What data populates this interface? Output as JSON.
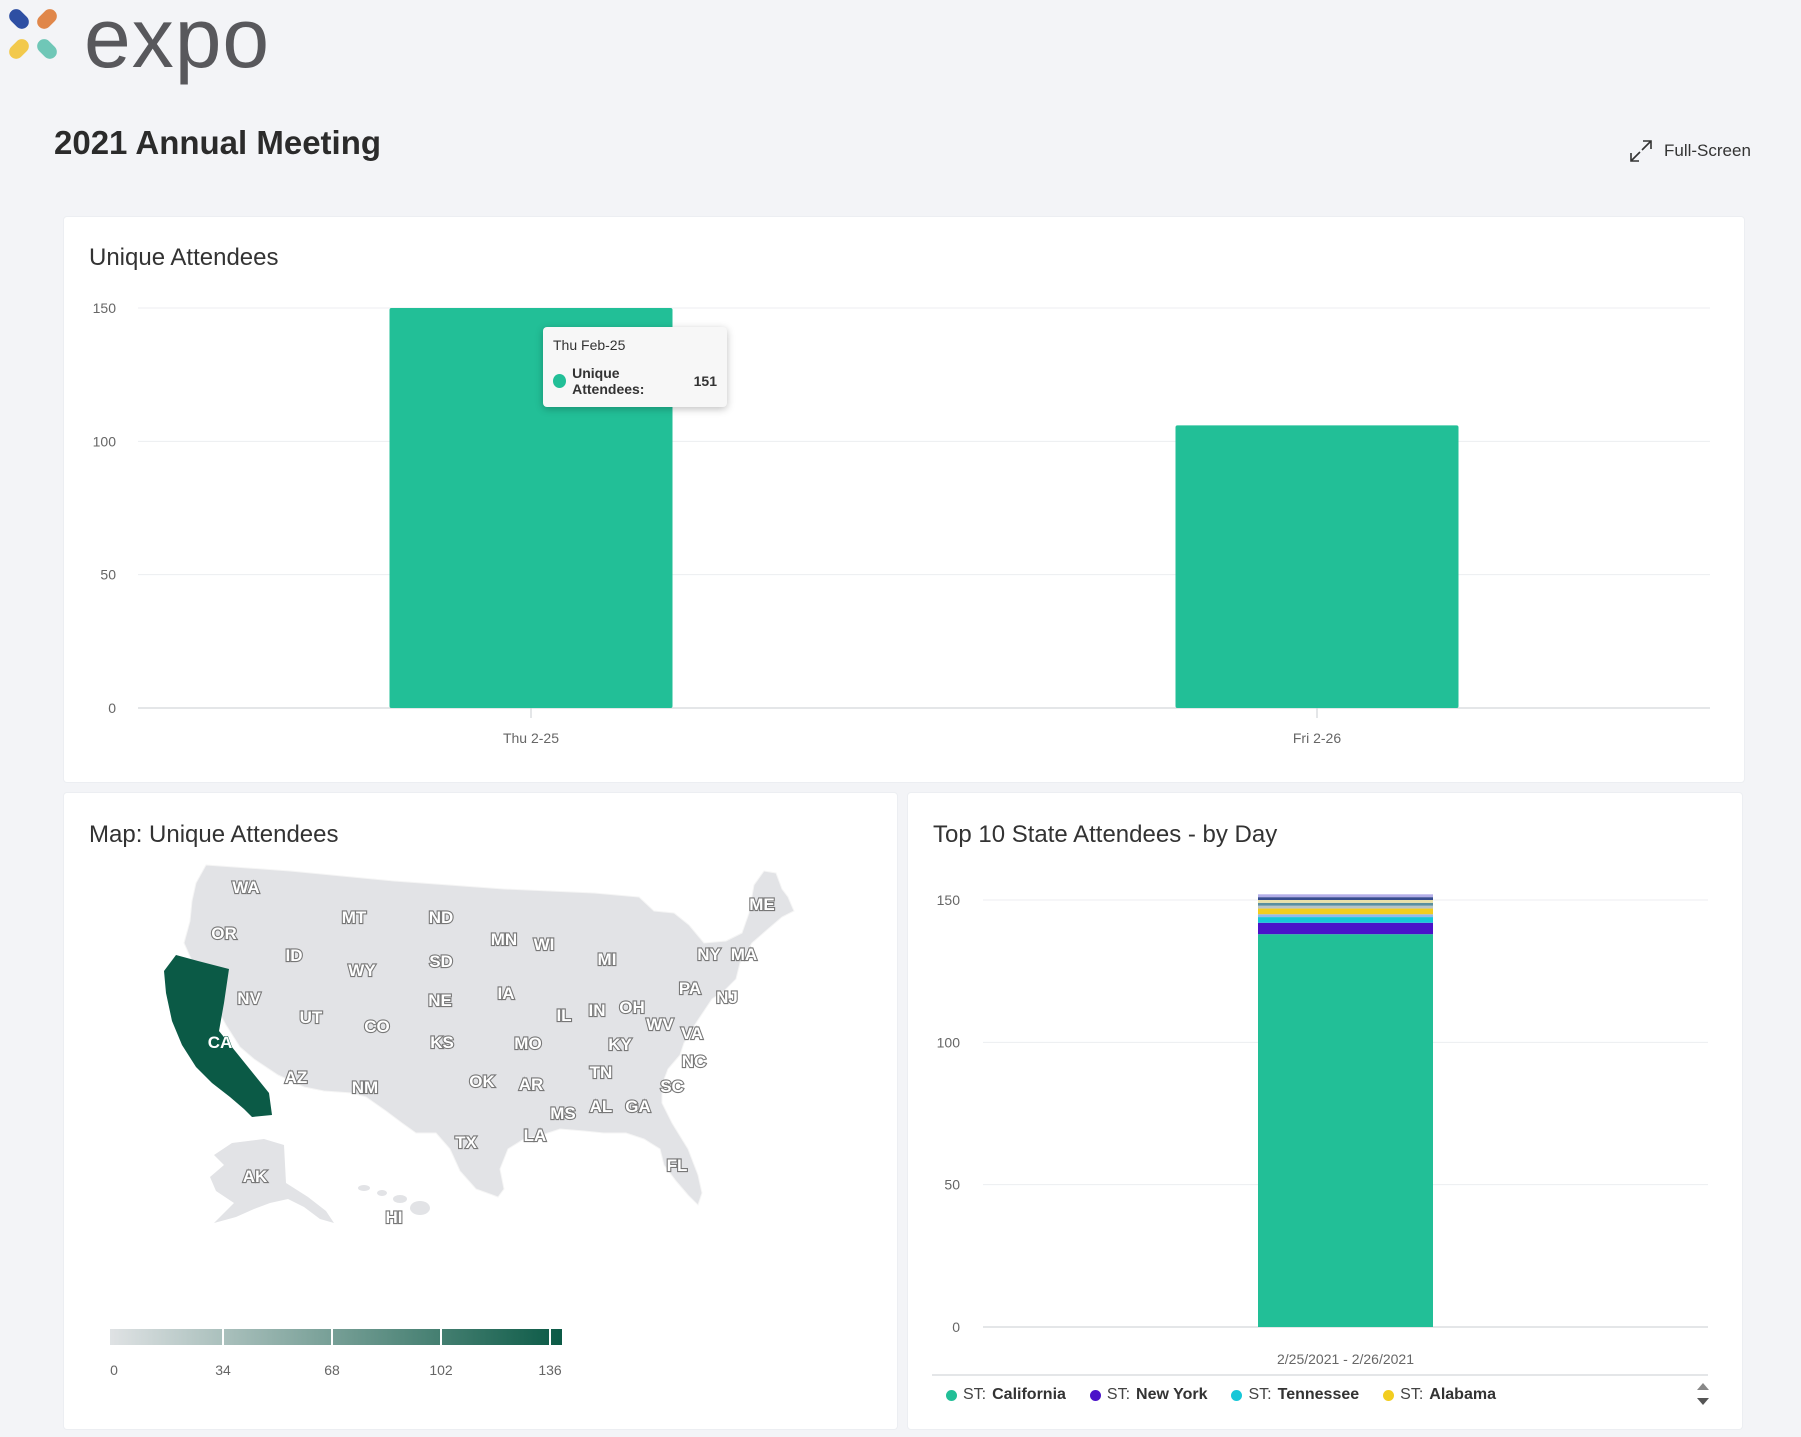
{
  "brand": {
    "name": "expo",
    "colors": [
      "#2e4fa3",
      "#e0874a",
      "#f2c94c",
      "#6fc7b7"
    ]
  },
  "page": {
    "title": "2021 Annual Meeting",
    "fullscreen_label": "Full-Screen",
    "fullscreen_icon": "expand-arrows-icon"
  },
  "unique_attendees": {
    "title": "Unique Attendees",
    "tooltip": {
      "header": "Thu Feb-25",
      "series": "Unique Attendees:",
      "value": "151"
    },
    "chart_data": {
      "type": "bar",
      "categories": [
        "Thu 2-25",
        "Fri 2-26"
      ],
      "values": [
        151,
        106
      ],
      "ylim": [
        0,
        150
      ],
      "yticks": [
        0,
        50,
        100,
        150
      ],
      "color": "#22bf97"
    }
  },
  "map": {
    "title": "Map: Unique Attendees",
    "highlighted_state": "CA",
    "highlight_color": "#0b5a46",
    "base_color": "#e2e3e6",
    "states": [
      "WA",
      "OR",
      "CA",
      "NV",
      "ID",
      "MT",
      "WY",
      "UT",
      "AZ",
      "CO",
      "NM",
      "ND",
      "SD",
      "NE",
      "KS",
      "OK",
      "TX",
      "MN",
      "IA",
      "MO",
      "AR",
      "LA",
      "WI",
      "IL",
      "MI",
      "IN",
      "OH",
      "KY",
      "TN",
      "MS",
      "AL",
      "GA",
      "FL",
      "SC",
      "NC",
      "VA",
      "WV",
      "PA",
      "NY",
      "NJ",
      "MA",
      "ME",
      "AK",
      "HI"
    ],
    "scale": {
      "ticks": [
        "0",
        "34",
        "68",
        "102",
        "136"
      ],
      "colors": [
        "#dfe2e4",
        "#0b5a46"
      ]
    }
  },
  "top10": {
    "title": "Top 10 State Attendees - by Day",
    "chart_data": {
      "type": "bar",
      "stacked": true,
      "categories": [
        "2/25/2021 - 2/26/2021"
      ],
      "ylim": [
        0,
        150
      ],
      "yticks": [
        0,
        50,
        100,
        150
      ],
      "series": [
        {
          "name": "ST: California",
          "values": [
            138
          ],
          "color": "#22bf97"
        },
        {
          "name": "ST: New York",
          "values": [
            4
          ],
          "color": "#4a12c9"
        },
        {
          "name": "ST: Tennessee",
          "values": [
            2
          ],
          "color": "#16c7d8"
        },
        {
          "name": "",
          "values": [
            1
          ],
          "color": "#93b9ea"
        },
        {
          "name": "ST: Alabama",
          "values": [
            2
          ],
          "color": "#f2cd1f"
        },
        {
          "name": "",
          "values": [
            1
          ],
          "color": "#b8c4c8"
        },
        {
          "name": "",
          "values": [
            1
          ],
          "color": "#5a8f9e"
        },
        {
          "name": "",
          "values": [
            1
          ],
          "color": "#e9e1a8"
        },
        {
          "name": "",
          "values": [
            1
          ],
          "color": "#374d8f"
        },
        {
          "name": "",
          "values": [
            1
          ],
          "color": "#b3aee8"
        }
      ]
    },
    "legend": [
      {
        "label": "ST:",
        "value": "California",
        "color": "#22bf97"
      },
      {
        "label": "ST:",
        "value": "New York",
        "color": "#4a12c9"
      },
      {
        "label": "ST:",
        "value": "Tennessee",
        "color": "#16c7d8"
      },
      {
        "label": "ST:",
        "value": "Alabama",
        "color": "#f2cd1f"
      }
    ]
  }
}
